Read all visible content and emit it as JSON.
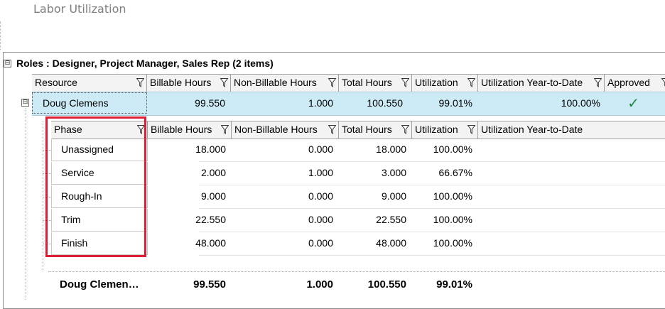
{
  "page": {
    "title": "Labor Utilization"
  },
  "group": {
    "label": "Roles : Designer, Project Manager, Sales Rep (2 items)",
    "expander": "⊟"
  },
  "main_columns": [
    "Resource",
    "Billable Hours",
    "Non-Billable Hours",
    "Total Hours",
    "Utilization",
    "Utilization Year-to-Date",
    "Approved"
  ],
  "main_row": {
    "expander": "⊟",
    "resource": "Doug Clemens",
    "billable": "99.550",
    "non_billable": "1.000",
    "total": "100.550",
    "utilization": "99.01%",
    "utilization_ytd": "100.00%",
    "approved": "✓"
  },
  "sub_columns": [
    "Phase",
    "Billable Hours",
    "Non-Billable Hours",
    "Total Hours",
    "Utilization",
    "Utilization Year-to-Date"
  ],
  "sub_rows": [
    {
      "phase": "Unassigned",
      "billable": "18.000",
      "non_billable": "0.000",
      "total": "18.000",
      "utilization": "100.00%"
    },
    {
      "phase": "Service",
      "billable": "2.000",
      "non_billable": "1.000",
      "total": "3.000",
      "utilization": "66.67%"
    },
    {
      "phase": "Rough-In",
      "billable": "9.000",
      "non_billable": "0.000",
      "total": "9.000",
      "utilization": "100.00%"
    },
    {
      "phase": "Trim",
      "billable": "22.550",
      "non_billable": "0.000",
      "total": "22.550",
      "utilization": "100.00%"
    },
    {
      "phase": "Finish",
      "billable": "48.000",
      "non_billable": "0.000",
      "total": "48.000",
      "utilization": "100.00%"
    }
  ],
  "totals": {
    "resource": "Doug Clemen…",
    "billable": "99.550",
    "non_billable": "1.000",
    "total": "100.550",
    "utilization": "99.01%"
  },
  "colors": {
    "highlight": "#dd1f36",
    "selected_row": "#cdebf7",
    "check": "#1a8a3a"
  }
}
